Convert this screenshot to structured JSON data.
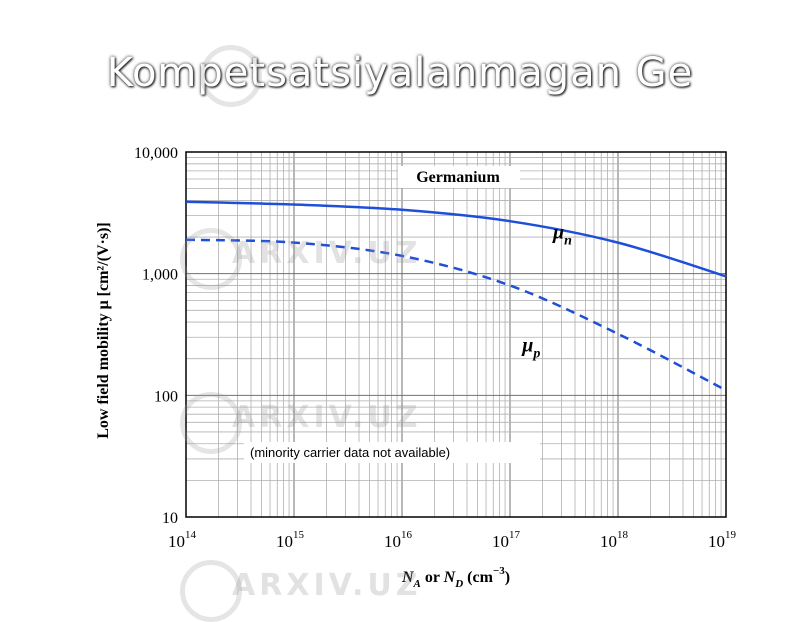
{
  "slide": {
    "title": "Kompetsatsiyalanmagan Ge",
    "watermark": "ARXIV.UZ"
  },
  "colors": {
    "series": "#1f4fd8",
    "grid_major": "#707070",
    "grid_minor": "#b0b0b0",
    "axis": "#000000"
  },
  "chart_data": {
    "type": "line",
    "title": "Germanium",
    "xlabel": "N_A or N_D (cm^-3)",
    "ylabel": "Low field mobility μ [cm²/(V·s)]",
    "xscale": "log",
    "yscale": "log",
    "xlim": [
      100000000000000.0,
      1e+19
    ],
    "ylim": [
      10,
      10000
    ],
    "grid": true,
    "x_ticks": [
      {
        "base": "10",
        "exp": "14"
      },
      {
        "base": "10",
        "exp": "15"
      },
      {
        "base": "10",
        "exp": "16"
      },
      {
        "base": "10",
        "exp": "17"
      },
      {
        "base": "10",
        "exp": "18"
      },
      {
        "base": "10",
        "exp": "19"
      }
    ],
    "y_ticks": [
      "10",
      "100",
      "1,000",
      "10,000"
    ],
    "series": [
      {
        "label": "μ",
        "subscript": "n",
        "style": "solid",
        "x": [
          100000000000000.0,
          1000000000000000.0,
          1e+16,
          1e+17,
          1e+18,
          1e+19
        ],
        "y": [
          3900,
          3700,
          3350,
          2700,
          1800,
          950
        ]
      },
      {
        "label": "μ",
        "subscript": "p",
        "style": "dashed",
        "x": [
          100000000000000.0,
          1000000000000000.0,
          1e+16,
          1e+17,
          1e+18,
          1e+19
        ],
        "y": [
          1900,
          1800,
          1400,
          800,
          320,
          110
        ]
      }
    ],
    "annotation": "(minority carrier data not available)"
  }
}
